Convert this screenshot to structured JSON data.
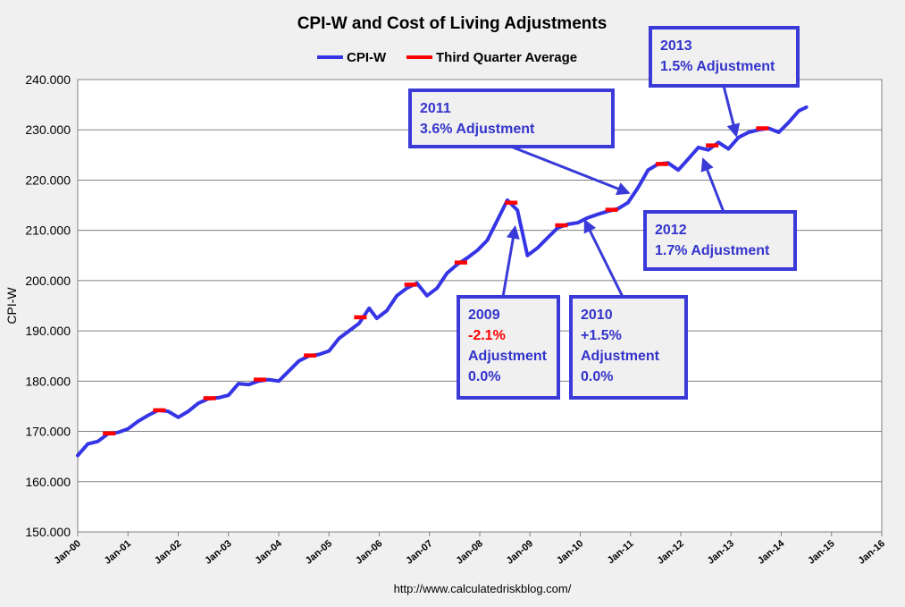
{
  "chart_data": {
    "type": "line",
    "title": "CPI-W and Cost of Living Adjustments",
    "ylabel": "CPI-W",
    "xlabel": "",
    "source": "http://www.calculatedriskblog.com/",
    "ylim": [
      150,
      240
    ],
    "xlim": [
      2000,
      2016
    ],
    "y_ticks": [
      "150.000",
      "160.000",
      "170.000",
      "180.000",
      "190.000",
      "200.000",
      "210.000",
      "220.000",
      "230.000",
      "240.000"
    ],
    "x_ticks": [
      "Jan-00",
      "Jan-01",
      "Jan-02",
      "Jan-03",
      "Jan-04",
      "Jan-05",
      "Jan-06",
      "Jan-07",
      "Jan-08",
      "Jan-09",
      "Jan-10",
      "Jan-11",
      "Jan-12",
      "Jan-13",
      "Jan-14",
      "Jan-15",
      "Jan-16"
    ],
    "legend": [
      "CPI-W",
      "Third Quarter Average"
    ],
    "legend_position": "top-center",
    "colors": {
      "cpi": "#3535e6",
      "q3": "#ff0000",
      "annotation": "#3333cc",
      "negative": "#ff0000"
    },
    "series": [
      {
        "name": "CPI-W",
        "points": [
          [
            2000.0,
            165.2
          ],
          [
            2000.2,
            167.5
          ],
          [
            2000.4,
            168.0
          ],
          [
            2000.6,
            169.5
          ],
          [
            2000.8,
            169.8
          ],
          [
            2001.0,
            170.5
          ],
          [
            2001.2,
            172.0
          ],
          [
            2001.4,
            173.2
          ],
          [
            2001.6,
            174.2
          ],
          [
            2001.8,
            174.0
          ],
          [
            2002.0,
            172.8
          ],
          [
            2002.2,
            174.0
          ],
          [
            2002.4,
            175.6
          ],
          [
            2002.6,
            176.5
          ],
          [
            2002.8,
            176.7
          ],
          [
            2003.0,
            177.2
          ],
          [
            2003.2,
            179.5
          ],
          [
            2003.4,
            179.3
          ],
          [
            2003.6,
            180.0
          ],
          [
            2003.8,
            180.3
          ],
          [
            2004.0,
            180.0
          ],
          [
            2004.2,
            182.0
          ],
          [
            2004.4,
            184.0
          ],
          [
            2004.6,
            185.0
          ],
          [
            2004.8,
            185.3
          ],
          [
            2005.0,
            186.0
          ],
          [
            2005.2,
            188.5
          ],
          [
            2005.4,
            190.0
          ],
          [
            2005.6,
            191.5
          ],
          [
            2005.8,
            194.5
          ],
          [
            2005.95,
            192.5
          ],
          [
            2006.15,
            194.0
          ],
          [
            2006.35,
            197.0
          ],
          [
            2006.55,
            198.5
          ],
          [
            2006.75,
            199.5
          ],
          [
            2006.95,
            197.0
          ],
          [
            2007.15,
            198.5
          ],
          [
            2007.35,
            201.5
          ],
          [
            2007.55,
            203.2
          ],
          [
            2007.75,
            204.5
          ],
          [
            2007.95,
            206.0
          ],
          [
            2008.15,
            208.0
          ],
          [
            2008.35,
            212.0
          ],
          [
            2008.55,
            216.0
          ],
          [
            2008.75,
            214.0
          ],
          [
            2008.95,
            205.0
          ],
          [
            2009.15,
            206.5
          ],
          [
            2009.35,
            208.5
          ],
          [
            2009.55,
            210.5
          ],
          [
            2009.75,
            211.2
          ],
          [
            2009.95,
            211.5
          ],
          [
            2010.15,
            212.5
          ],
          [
            2010.35,
            213.2
          ],
          [
            2010.55,
            213.8
          ],
          [
            2010.75,
            214.3
          ],
          [
            2010.95,
            215.5
          ],
          [
            2011.15,
            218.5
          ],
          [
            2011.35,
            222.0
          ],
          [
            2011.55,
            223.2
          ],
          [
            2011.75,
            223.4
          ],
          [
            2011.95,
            222.0
          ],
          [
            2012.15,
            224.2
          ],
          [
            2012.35,
            226.5
          ],
          [
            2012.55,
            226.0
          ],
          [
            2012.75,
            227.5
          ],
          [
            2012.95,
            226.2
          ],
          [
            2013.15,
            228.5
          ],
          [
            2013.35,
            229.5
          ],
          [
            2013.55,
            230.0
          ],
          [
            2013.75,
            230.3
          ],
          [
            2013.95,
            229.5
          ],
          [
            2014.15,
            231.5
          ],
          [
            2014.35,
            233.8
          ],
          [
            2014.5,
            234.5
          ]
        ]
      },
      {
        "name": "Third Quarter Average",
        "segments": [
          {
            "x": [
              2000.5,
              2000.75
            ],
            "value": 169.6
          },
          {
            "x": [
              2001.5,
              2001.75
            ],
            "value": 174.2
          },
          {
            "x": [
              2002.5,
              2002.75
            ],
            "value": 176.6
          },
          {
            "x": [
              2003.5,
              2003.75
            ],
            "value": 180.3
          },
          {
            "x": [
              2004.5,
              2004.75
            ],
            "value": 185.1
          },
          {
            "x": [
              2005.5,
              2005.75
            ],
            "value": 192.7
          },
          {
            "x": [
              2006.5,
              2006.75
            ],
            "value": 199.2
          },
          {
            "x": [
              2007.5,
              2007.75
            ],
            "value": 203.6
          },
          {
            "x": [
              2008.5,
              2008.75
            ],
            "value": 215.5
          },
          {
            "x": [
              2009.5,
              2009.75
            ],
            "value": 211.0
          },
          {
            "x": [
              2010.5,
              2010.75
            ],
            "value": 214.1
          },
          {
            "x": [
              2011.5,
              2011.75
            ],
            "value": 223.2
          },
          {
            "x": [
              2012.5,
              2012.75
            ],
            "value": 226.9
          },
          {
            "x": [
              2013.5,
              2013.75
            ],
            "value": 230.3
          }
        ]
      }
    ],
    "annotations": [
      {
        "name": "2009",
        "lines": [
          {
            "text": "2009"
          },
          {
            "text": "-2.1%",
            "red": true
          },
          {
            "text": "Adjustment"
          },
          {
            "text": "0.0%"
          }
        ],
        "arrow_to": [
          2008.7,
          210.5
        ]
      },
      {
        "name": "2010",
        "lines": [
          {
            "text": "2010"
          },
          {
            "text": "+1.5%"
          },
          {
            "text": "Adjustment"
          },
          {
            "text": "0.0%"
          }
        ],
        "arrow_to": [
          2010.1,
          211.8
        ]
      },
      {
        "name": "2011",
        "lines": [
          {
            "text": "2011"
          },
          {
            "text": " 3.6% Adjustment"
          }
        ],
        "arrow_to": [
          2010.95,
          217.5
        ]
      },
      {
        "name": "2012",
        "lines": [
          {
            "text": "2012"
          },
          {
            "text": "1.7% Adjustment"
          }
        ],
        "arrow_to": [
          2012.45,
          224.0
        ]
      },
      {
        "name": "2013",
        "lines": [
          {
            "text": "2013"
          },
          {
            "text": "1.5% Adjustment"
          }
        ],
        "arrow_to": [
          2013.1,
          229.0
        ]
      }
    ]
  }
}
